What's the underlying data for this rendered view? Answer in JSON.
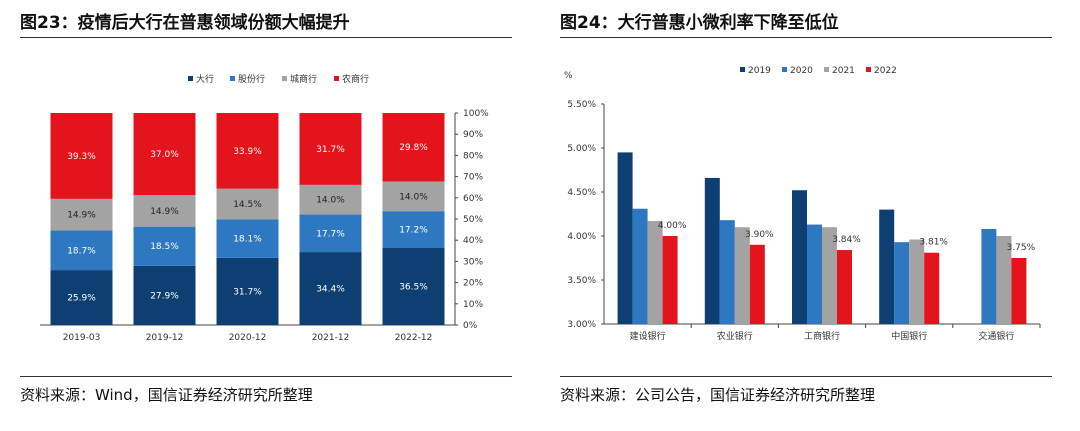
{
  "left": {
    "title": "图23：疫情后大行在普惠领域份额大幅提升",
    "source": "资料来源：Wind，国信证券经济研究所整理"
  },
  "right": {
    "title": "图24：大行普惠小微利率下降至低位",
    "source": "资料来源：公司公告，国信证券经济研究所整理"
  },
  "colors": {
    "navy": "#0d3f73",
    "blue": "#2e78c2",
    "gray": "#a3a3a3",
    "red": "#e3141b"
  },
  "chart_data": [
    {
      "type": "bar",
      "stacked": true,
      "percent": true,
      "categories": [
        "2019-03",
        "2019-12",
        "2020-12",
        "2021-12",
        "2022-12"
      ],
      "series": [
        {
          "name": "大行",
          "values": [
            25.9,
            27.9,
            31.7,
            34.4,
            36.5
          ],
          "labels": [
            "25.9%",
            "27.9%",
            "31.7%",
            "34.4%",
            "36.5%"
          ]
        },
        {
          "name": "股份行",
          "values": [
            18.7,
            18.5,
            18.1,
            17.7,
            17.2
          ],
          "labels": [
            "18.7%",
            "18.5%",
            "18.1%",
            "17.7%",
            "17.2%"
          ]
        },
        {
          "name": "城商行",
          "values": [
            14.9,
            14.9,
            14.5,
            14.0,
            14.0
          ],
          "labels": [
            "14.9%",
            "14.9%",
            "14.5%",
            "14.0%",
            "14.0%"
          ]
        },
        {
          "name": "农商行",
          "values": [
            39.3,
            37.0,
            33.9,
            31.7,
            29.8
          ],
          "labels": [
            "39.3%",
            "37.0%",
            "33.9%",
            "31.7%",
            "29.8%"
          ]
        }
      ],
      "ylim": [
        0,
        100
      ],
      "yticks": [
        "0%",
        "10%",
        "20%",
        "30%",
        "40%",
        "50%",
        "60%",
        "70%",
        "80%",
        "90%",
        "100%"
      ],
      "legend_position": "top-center"
    },
    {
      "type": "bar",
      "categories": [
        "建设银行",
        "农业银行",
        "工商银行",
        "中国银行",
        "交通银行"
      ],
      "series": [
        {
          "name": "2019",
          "values": [
            4.95,
            4.66,
            4.52,
            4.3,
            null
          ]
        },
        {
          "name": "2020",
          "values": [
            4.31,
            4.18,
            4.13,
            3.93,
            4.08
          ]
        },
        {
          "name": "2021",
          "values": [
            4.17,
            4.1,
            4.1,
            3.96,
            4.0
          ]
        },
        {
          "name": "2022",
          "values": [
            4.0,
            3.9,
            3.84,
            3.81,
            3.75
          ],
          "labels": [
            "4.00%",
            "3.90%",
            "3.84%",
            "3.81%",
            "3.75%"
          ]
        }
      ],
      "ylabel": "%",
      "ylim": [
        3.0,
        5.5
      ],
      "yticks": [
        "3.00%",
        "3.50%",
        "4.00%",
        "4.50%",
        "5.00%",
        "5.50%"
      ],
      "legend_position": "top-center"
    }
  ]
}
